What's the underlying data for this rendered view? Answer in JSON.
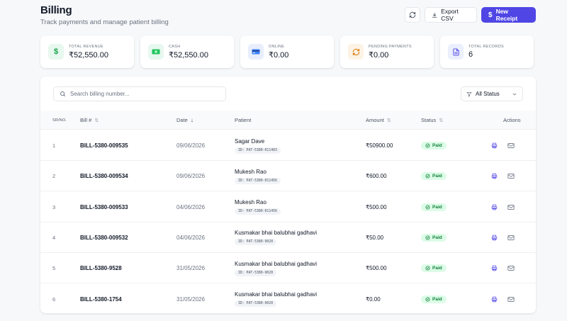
{
  "header": {
    "title": "Billing",
    "subtitle": "Track payments and manage patient billing",
    "export_label": "Export CSV",
    "new_label": "New Receipt"
  },
  "stats": [
    {
      "label": "Total Revenue",
      "value": "₹52,550.00",
      "icon": "dollar-icon",
      "bg": "#e7f8ef",
      "fg": "#16a34a"
    },
    {
      "label": "Cash",
      "value": "₹52,550.00",
      "icon": "cash-icon",
      "bg": "#e7f8ef",
      "fg": "#16a34a"
    },
    {
      "label": "Online",
      "value": "₹0.00",
      "icon": "card-icon",
      "bg": "#e8eefc",
      "fg": "#3b5bdb"
    },
    {
      "label": "Pending Payments",
      "value": "₹0.00",
      "icon": "refresh-icon",
      "bg": "#fdf3e4",
      "fg": "#d97706"
    },
    {
      "label": "Total Records",
      "value": "6",
      "icon": "document-icon",
      "bg": "#eceffd",
      "fg": "#4f46e5"
    }
  ],
  "toolbar": {
    "search_placeholder": "Search billing number...",
    "filter_label": "All Status"
  },
  "table": {
    "columns": {
      "sr": "SR/NO.",
      "bill": "Bill #",
      "date": "Date",
      "patient": "Patient",
      "amount": "Amount",
      "status": "Status",
      "actions": "Actions"
    },
    "rows": [
      {
        "sr": "1",
        "bill": "BILL-5380-009535",
        "date": "09/06/2026",
        "patient": "Sagar Dave",
        "pid": "ID: PAT-5380-011483",
        "amount": "₹50900.00",
        "status": "Paid"
      },
      {
        "sr": "2",
        "bill": "BILL-5380-009534",
        "date": "09/06/2026",
        "patient": "Mukesh Rao",
        "pid": "ID: PAT-5380-011456",
        "amount": "₹600.00",
        "status": "Paid"
      },
      {
        "sr": "3",
        "bill": "BILL-5380-009533",
        "date": "04/06/2026",
        "patient": "Mukesh Rao",
        "pid": "ID: PAT-5380-011456",
        "amount": "₹500.00",
        "status": "Paid"
      },
      {
        "sr": "4",
        "bill": "BILL-5380-009532",
        "date": "04/06/2026",
        "patient": "Kusmakar bhai balubhai gadhavi",
        "pid": "ID: PAT-5380-9020",
        "amount": "₹50.00",
        "status": "Paid"
      },
      {
        "sr": "5",
        "bill": "BILL-5380-9528",
        "date": "31/05/2026",
        "patient": "Kusmakar bhai balubhai gadhavi",
        "pid": "ID: PAT-5380-9020",
        "amount": "₹500.00",
        "status": "Paid"
      },
      {
        "sr": "6",
        "bill": "BILL-5380-1754",
        "date": "31/05/2026",
        "patient": "Kusmakar bhai balubhai gadhavi",
        "pid": "ID: PAT-5380-9020",
        "amount": "₹0.00",
        "status": "Paid"
      }
    ]
  },
  "colors": {
    "primary": "#4f46e5",
    "paid_bg": "#dcfce7",
    "paid_fg": "#15803d"
  }
}
